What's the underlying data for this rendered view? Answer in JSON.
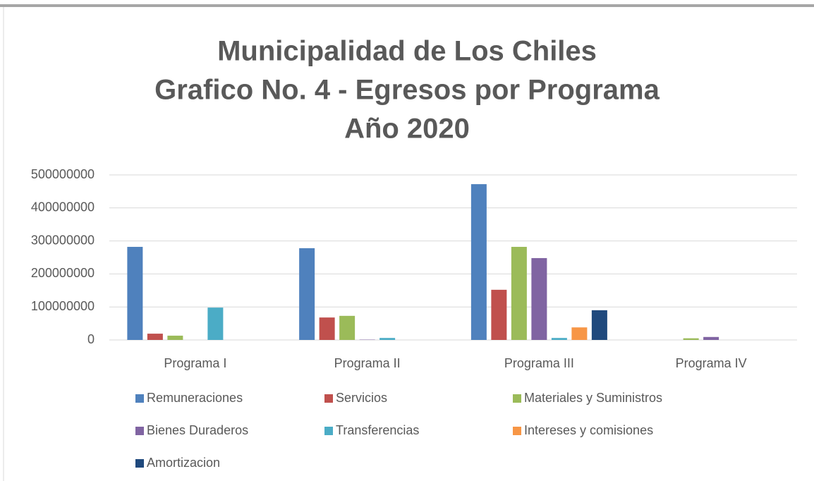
{
  "chart_data": {
    "type": "bar",
    "title": [
      "Municipalidad de Los Chiles",
      "Grafico No. 4 - Egresos por Programa",
      "Año  2020"
    ],
    "categories": [
      "Programa I",
      "Programa II",
      "Programa III",
      "Programa IV"
    ],
    "series": [
      {
        "name": "Remuneraciones",
        "color": "#4f81bd",
        "values": [
          282000000,
          278000000,
          472000000,
          0
        ]
      },
      {
        "name": "Servicios",
        "color": "#c0504d",
        "values": [
          19000000,
          68000000,
          152000000,
          0
        ]
      },
      {
        "name": "Materiales y Suministros",
        "color": "#9bbb59",
        "values": [
          13000000,
          73000000,
          282000000,
          5000000
        ]
      },
      {
        "name": "Bienes Duraderos",
        "color": "#8064a2",
        "values": [
          0,
          1000000,
          248000000,
          9000000
        ]
      },
      {
        "name": "Transferencias",
        "color": "#4bacc6",
        "values": [
          98000000,
          6000000,
          6000000,
          0
        ]
      },
      {
        "name": "Intereses y comisiones",
        "color": "#f79646",
        "values": [
          0,
          0,
          38000000,
          0
        ]
      },
      {
        "name": "Amortizacion",
        "color": "#1f497d",
        "values": [
          0,
          0,
          90000000,
          0
        ]
      }
    ],
    "ylim": [
      0,
      500000000
    ],
    "yticks": [
      0,
      100000000,
      200000000,
      300000000,
      400000000,
      500000000
    ],
    "grid": true,
    "legend": "bottom"
  }
}
